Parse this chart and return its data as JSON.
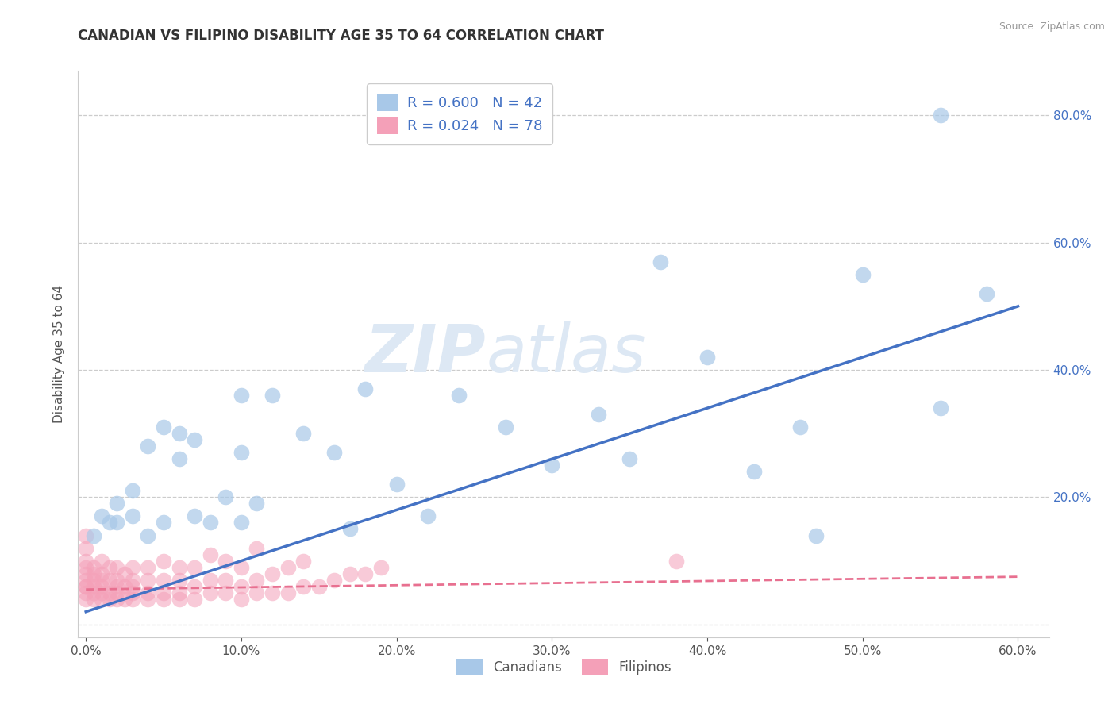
{
  "title": "CANADIAN VS FILIPINO DISABILITY AGE 35 TO 64 CORRELATION CHART",
  "source": "Source: ZipAtlas.com",
  "xlabel": "",
  "ylabel": "Disability Age 35 to 64",
  "xlim": [
    -0.005,
    0.62
  ],
  "ylim": [
    -0.02,
    0.87
  ],
  "xticks": [
    0.0,
    0.1,
    0.2,
    0.3,
    0.4,
    0.5,
    0.6
  ],
  "xticklabels": [
    "0.0%",
    "",
    "",
    "",
    "",
    "",
    "60.0%"
  ],
  "yticks": [
    0.0,
    0.2,
    0.4,
    0.6,
    0.8
  ],
  "yticklabels": [
    "",
    "20.0%",
    "40.0%",
    "60.0%",
    "80.0%"
  ],
  "canadian_R": 0.6,
  "canadian_N": 42,
  "filipino_R": 0.024,
  "filipino_N": 78,
  "canadian_color": "#a8c8e8",
  "filipino_color": "#f4a0b8",
  "canadian_line_color": "#4472c4",
  "filipino_line_color": "#e87090",
  "legend_canadians": "Canadians",
  "legend_filipinos": "Filipinos",
  "canadian_line_x0": 0.0,
  "canadian_line_y0": 0.02,
  "canadian_line_x1": 0.6,
  "canadian_line_y1": 0.5,
  "filipino_line_x0": 0.0,
  "filipino_line_y0": 0.055,
  "filipino_line_x1": 0.6,
  "filipino_line_y1": 0.075,
  "canadian_points_x": [
    0.005,
    0.01,
    0.015,
    0.02,
    0.02,
    0.03,
    0.03,
    0.04,
    0.04,
    0.05,
    0.05,
    0.06,
    0.06,
    0.07,
    0.07,
    0.08,
    0.09,
    0.1,
    0.1,
    0.1,
    0.11,
    0.12,
    0.14,
    0.16,
    0.17,
    0.18,
    0.2,
    0.22,
    0.24,
    0.27,
    0.3,
    0.33,
    0.35,
    0.37,
    0.4,
    0.43,
    0.47,
    0.5,
    0.55,
    0.58,
    0.46,
    0.55
  ],
  "canadian_points_y": [
    0.14,
    0.17,
    0.16,
    0.16,
    0.19,
    0.17,
    0.21,
    0.14,
    0.28,
    0.16,
    0.31,
    0.26,
    0.3,
    0.17,
    0.29,
    0.16,
    0.2,
    0.16,
    0.27,
    0.36,
    0.19,
    0.36,
    0.3,
    0.27,
    0.15,
    0.37,
    0.22,
    0.17,
    0.36,
    0.31,
    0.25,
    0.33,
    0.26,
    0.57,
    0.42,
    0.24,
    0.14,
    0.55,
    0.34,
    0.52,
    0.31,
    0.8
  ],
  "filipino_points_x": [
    0.0,
    0.0,
    0.0,
    0.0,
    0.0,
    0.0,
    0.0,
    0.0,
    0.0,
    0.0,
    0.005,
    0.005,
    0.005,
    0.005,
    0.005,
    0.005,
    0.01,
    0.01,
    0.01,
    0.01,
    0.01,
    0.01,
    0.015,
    0.015,
    0.015,
    0.015,
    0.02,
    0.02,
    0.02,
    0.02,
    0.02,
    0.025,
    0.025,
    0.025,
    0.03,
    0.03,
    0.03,
    0.03,
    0.03,
    0.04,
    0.04,
    0.04,
    0.04,
    0.05,
    0.05,
    0.05,
    0.05,
    0.06,
    0.06,
    0.06,
    0.06,
    0.07,
    0.07,
    0.07,
    0.08,
    0.08,
    0.08,
    0.09,
    0.09,
    0.09,
    0.1,
    0.1,
    0.1,
    0.11,
    0.11,
    0.11,
    0.12,
    0.12,
    0.13,
    0.13,
    0.14,
    0.14,
    0.15,
    0.16,
    0.17,
    0.18,
    0.19,
    0.38
  ],
  "filipino_points_y": [
    0.04,
    0.05,
    0.06,
    0.06,
    0.07,
    0.08,
    0.09,
    0.1,
    0.12,
    0.14,
    0.04,
    0.05,
    0.06,
    0.07,
    0.08,
    0.09,
    0.04,
    0.05,
    0.06,
    0.07,
    0.08,
    0.1,
    0.04,
    0.05,
    0.07,
    0.09,
    0.04,
    0.05,
    0.06,
    0.07,
    0.09,
    0.04,
    0.06,
    0.08,
    0.04,
    0.05,
    0.06,
    0.07,
    0.09,
    0.04,
    0.05,
    0.07,
    0.09,
    0.04,
    0.05,
    0.07,
    0.1,
    0.04,
    0.05,
    0.07,
    0.09,
    0.04,
    0.06,
    0.09,
    0.05,
    0.07,
    0.11,
    0.05,
    0.07,
    0.1,
    0.04,
    0.06,
    0.09,
    0.05,
    0.07,
    0.12,
    0.05,
    0.08,
    0.05,
    0.09,
    0.06,
    0.1,
    0.06,
    0.07,
    0.08,
    0.08,
    0.09,
    0.1
  ],
  "background_color": "#ffffff",
  "grid_color": "#cccccc",
  "watermark_zip_color": "#dde8f4",
  "watermark_atlas_color": "#dde8f4"
}
